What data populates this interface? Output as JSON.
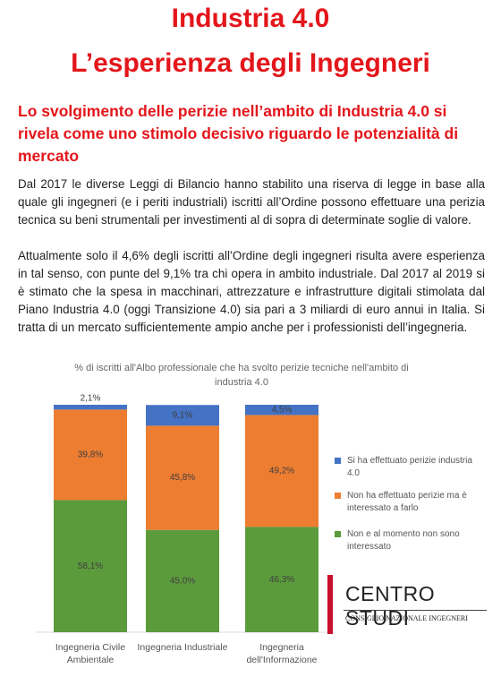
{
  "header": {
    "title_line1": "Industria 4.0",
    "title_line2": "L’esperienza degli Ingegneri"
  },
  "subtitle": "Lo svolgimento delle perizie nell’ambito di Industria 4.0 si rivela come uno stimolo decisivo riguardo le potenzialità di mercato",
  "paragraphs": [
    "Dal 2017 le diverse Leggi di Bilancio hanno stabilito una riserva di legge in base alla quale gli ingegneri (e i periti industriali) iscritti all’Ordine possono effettuare una perizia tecnica su beni strumentali per investimenti al di sopra di determinate soglie di valore.",
    "Attualmente solo il 4,6% degli iscritti all’Ordine degli ingegneri risulta avere esperienza in tal senso, con punte del 9,1% tra chi opera in ambito industriale. Dal 2017 al 2019 si è stimato che la spesa in macchinari, attrezzature e infrastrutture digitali stimolata dal Piano Industria 4.0 (oggi Transizione 4.0) sia pari a 3 miliardi di euro annui in Italia. Si tratta di un mercato sufficientemente ampio anche per i professionisti dell’ingegneria."
  ],
  "chart_data": {
    "type": "stacked_bar",
    "title": "% di iscritti all'Albo professionale che ha svolto perizie tecniche nell'ambito di industria 4.0",
    "categories": [
      "Ingegneria Civile Ambientale",
      "Ingegneria Industriale",
      "Ingegneria dell'Informazione"
    ],
    "ylim": [
      0,
      100
    ],
    "series": [
      {
        "name": "Si ha effettuato perizie industria 4.0",
        "color": "#4472c4",
        "values": [
          2.1,
          9.1,
          4.5
        ],
        "value_labels": [
          "2,1%",
          "9,1%",
          "4,5%"
        ]
      },
      {
        "name": "Non ha effettuato perizie ma è interessato a farlo",
        "color": "#ed7d31",
        "values": [
          39.8,
          45.8,
          49.2
        ],
        "value_labels": [
          "39,8%",
          "45,8%",
          "49,2%"
        ]
      },
      {
        "name": "Non e al momento non sono interessato",
        "color": "#5c9b3c",
        "values": [
          58.1,
          45.0,
          46.3
        ],
        "value_labels": [
          "58,1%",
          "45,0%",
          "46,3%"
        ]
      }
    ]
  },
  "logo": {
    "name": "CENTRO STUDI",
    "org": "CONSIGLIO NAZIONALE INGEGNERI"
  }
}
